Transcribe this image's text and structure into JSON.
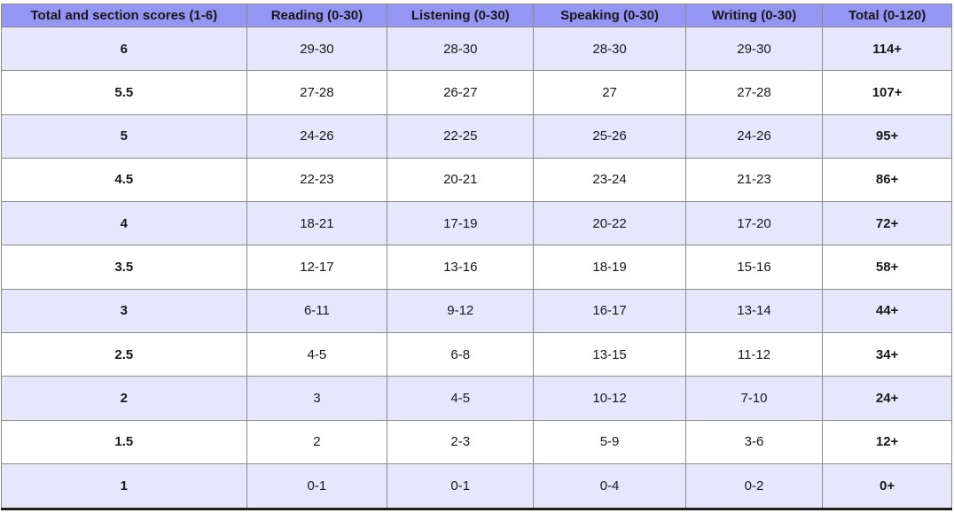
{
  "chart_data": {
    "type": "table",
    "columns": [
      "Total and section scores (1-6)",
      "Reading (0-30)",
      "Listening (0-30)",
      "Speaking (0-30)",
      "Writing (0-30)",
      "Total (0-120)"
    ],
    "rows": [
      [
        "6",
        "29-30",
        "28-30",
        "28-30",
        "29-30",
        "114+"
      ],
      [
        "5.5",
        "27-28",
        "26-27",
        "27",
        "27-28",
        "107+"
      ],
      [
        "5",
        "24-26",
        "22-25",
        "25-26",
        "24-26",
        "95+"
      ],
      [
        "4.5",
        "22-23",
        "20-21",
        "23-24",
        "21-23",
        "86+"
      ],
      [
        "4",
        "18-21",
        "17-19",
        "20-22",
        "17-20",
        "72+"
      ],
      [
        "3.5",
        "12-17",
        "13-16",
        "18-19",
        "15-16",
        "58+"
      ],
      [
        "3",
        "6-11",
        "9-12",
        "16-17",
        "13-14",
        "44+"
      ],
      [
        "2.5",
        "4-5",
        "6-8",
        "13-15",
        "11-12",
        "34+"
      ],
      [
        "2",
        "3",
        "4-5",
        "10-12",
        "7-10",
        "24+"
      ],
      [
        "1.5",
        "2",
        "2-3",
        "5-9",
        "3-6",
        "12+"
      ],
      [
        "1",
        "0-1",
        "0-1",
        "0-4",
        "0-2",
        "0+"
      ]
    ]
  },
  "colors": {
    "header_bg": "#9595f4",
    "row_bg": "#ffffff",
    "row_alt_bg": "#e7e7fb",
    "grid_border": "#8a8a8a",
    "bottom_border": "#1e1e1e",
    "text": "#17171c"
  },
  "layout": {
    "column_widths_pct": [
      25.8,
      14.8,
      15.4,
      16.0,
      14.4,
      13.6
    ]
  }
}
